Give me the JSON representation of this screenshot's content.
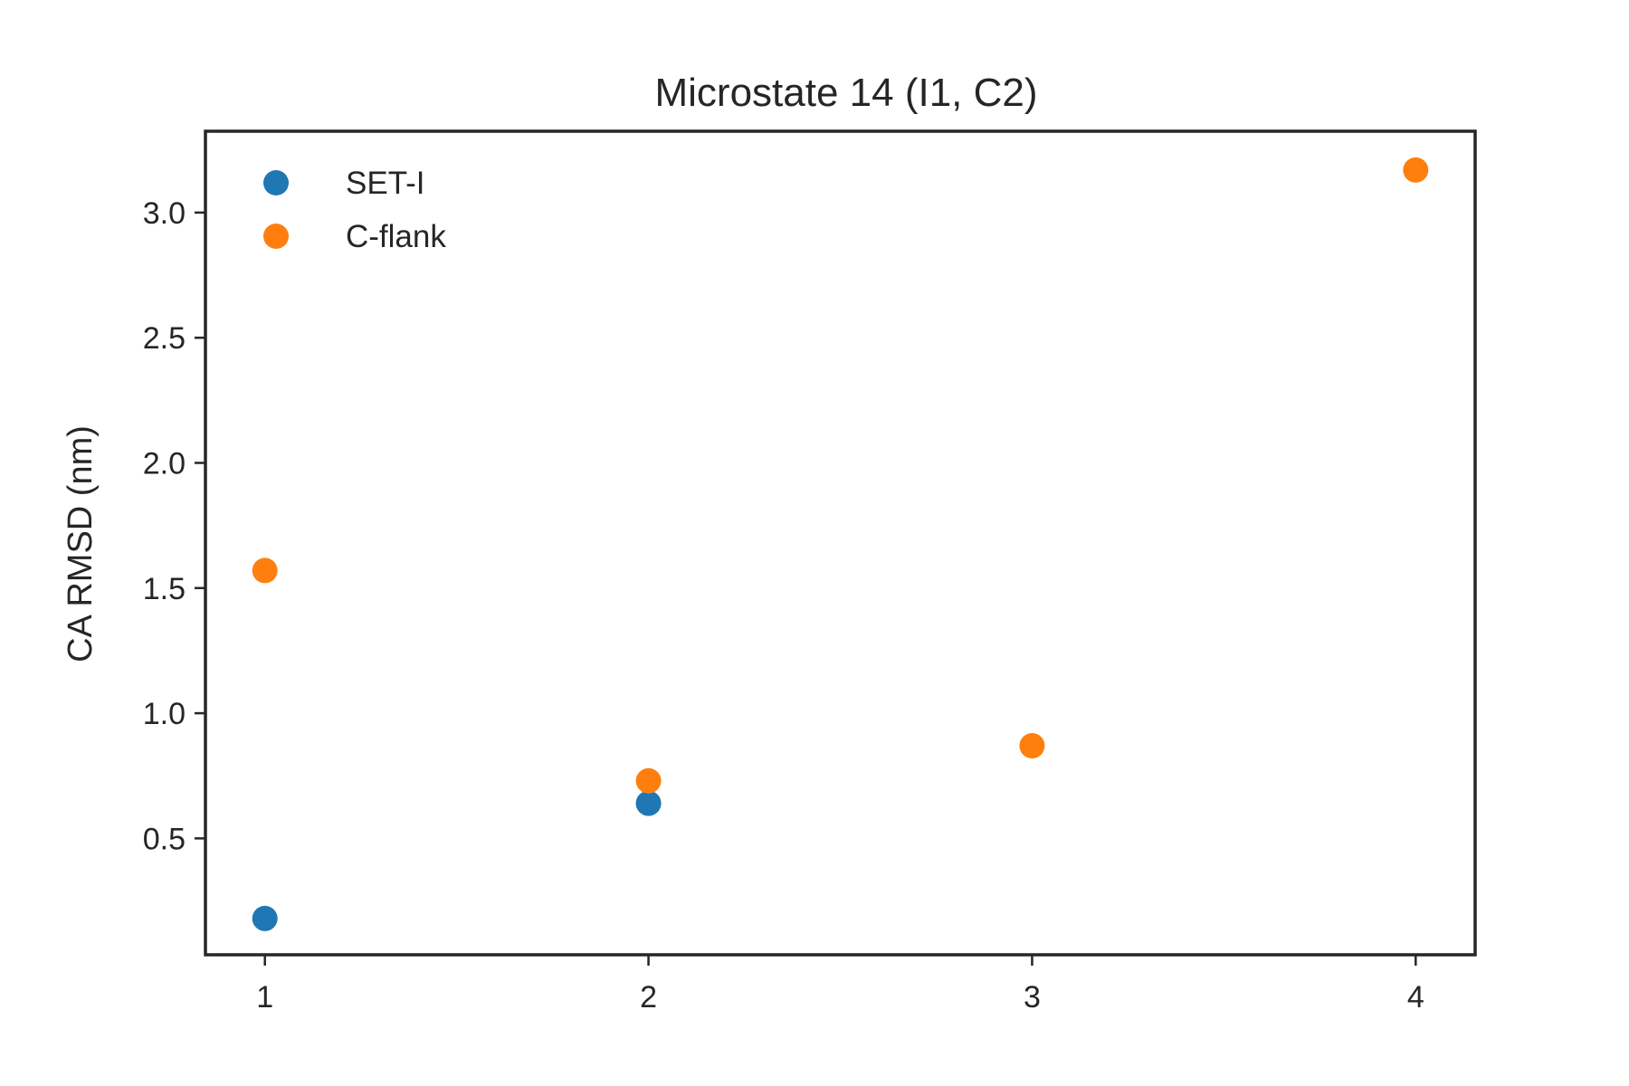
{
  "chart_data": {
    "type": "scatter",
    "title": "Microstate 14 (I1, C2)",
    "xlabel": "",
    "ylabel": "CA RMSD (nm)",
    "xlim": [
      0.845,
      4.155
    ],
    "ylim": [
      0.035,
      3.325
    ],
    "x_ticks": [
      1,
      2,
      3,
      4
    ],
    "x_tick_labels": [
      "1",
      "2",
      "3",
      "4"
    ],
    "y_ticks": [
      0.5,
      1.0,
      1.5,
      2.0,
      2.5,
      3.0
    ],
    "y_tick_labels": [
      "0.5",
      "1.0",
      "1.5",
      "2.0",
      "2.5",
      "3.0"
    ],
    "grid": false,
    "legend_position": "upper-left",
    "series": [
      {
        "name": "SET-I",
        "color": "#1f77b4",
        "points": [
          {
            "x": 1,
            "y": 0.18
          },
          {
            "x": 2,
            "y": 0.64
          }
        ]
      },
      {
        "name": "C-flank",
        "color": "#ff7f0e",
        "points": [
          {
            "x": 1,
            "y": 1.57
          },
          {
            "x": 2,
            "y": 0.73
          },
          {
            "x": 3,
            "y": 0.87
          },
          {
            "x": 4,
            "y": 3.17
          }
        ]
      }
    ]
  }
}
